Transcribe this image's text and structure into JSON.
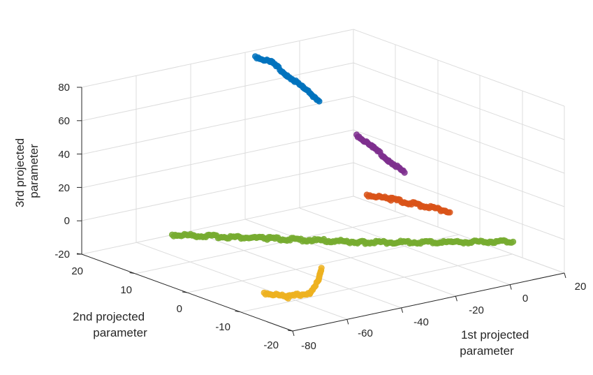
{
  "chart_data": {
    "type": "scatter",
    "dimensions": 3,
    "xlabel": [
      "1st projected",
      "parameter"
    ],
    "ylabel": [
      "2nd projected",
      "parameter"
    ],
    "zlabel": [
      "3rd projected",
      "parameter"
    ],
    "xlim": [
      -80,
      20
    ],
    "ylim": [
      -20,
      20
    ],
    "zlim": [
      -20,
      80
    ],
    "xticks": [
      "-80",
      "-60",
      "-40",
      "-20",
      "0",
      "20"
    ],
    "yticks": [
      "20",
      "10",
      "0",
      "-10",
      "-20"
    ],
    "zticks": [
      "80",
      "60",
      "40",
      "20",
      "0",
      "-20"
    ],
    "grid": true,
    "series": [
      {
        "color": "#0072BD",
        "points": [
          [
            -20,
            18,
            80
          ],
          [
            -18,
            16,
            78
          ],
          [
            -16,
            14,
            72
          ],
          [
            -14,
            12,
            66
          ],
          [
            -12,
            10,
            60
          ]
        ]
      },
      {
        "color": "#7E2F8E",
        "points": [
          [
            -6,
            6,
            42
          ],
          [
            -4,
            4,
            36
          ],
          [
            -2,
            2,
            30
          ],
          [
            0,
            0,
            24
          ]
        ]
      },
      {
        "color": "#D95319",
        "points": [
          [
            -10,
            2,
            12
          ],
          [
            -5,
            0,
            10
          ],
          [
            0,
            -3,
            8
          ],
          [
            5,
            -6,
            6
          ]
        ]
      },
      {
        "color": "#77AC30",
        "points": [
          [
            -70,
            8,
            2
          ],
          [
            -50,
            0,
            2
          ],
          [
            -30,
            -8,
            2
          ],
          [
            -10,
            -14,
            2
          ],
          [
            5,
            -18,
            2
          ]
        ]
      },
      {
        "color": "#EDB120",
        "points": [
          [
            -75,
            -12,
            -8
          ],
          [
            -70,
            -14,
            -10
          ],
          [
            -62,
            -14,
            -10
          ],
          [
            -55,
            -12,
            -8
          ],
          [
            -50,
            -10,
            -4
          ]
        ]
      }
    ]
  }
}
